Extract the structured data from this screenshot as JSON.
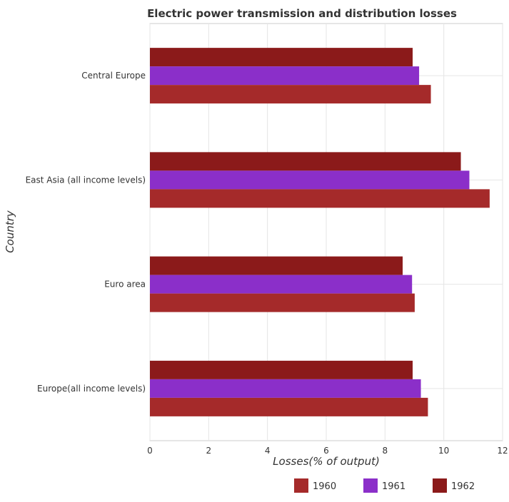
{
  "chart_data": {
    "type": "bar",
    "orientation": "horizontal",
    "title": "Electric power transmission and distribution losses",
    "xlabel": "Losses(% of output)",
    "ylabel": "Country",
    "categories": [
      "Central Europe",
      "East Asia (all income levels)",
      "Euro area",
      "Europe(all income levels)"
    ],
    "series": [
      {
        "name": "1960",
        "color": "#a52a2a",
        "values": [
          9.56,
          11.56,
          9.01,
          9.46
        ]
      },
      {
        "name": "1961",
        "color": "#8b2fc9",
        "values": [
          9.16,
          10.87,
          8.92,
          9.22
        ]
      },
      {
        "name": "1962",
        "color": "#8b1a1a",
        "values": [
          8.94,
          10.58,
          8.6,
          8.94
        ]
      }
    ],
    "xlim": [
      0,
      12
    ],
    "xticks": [
      "0",
      "2",
      "4",
      "6",
      "8",
      "10",
      "12"
    ],
    "grid": true,
    "legend_position": "bottom-right"
  }
}
